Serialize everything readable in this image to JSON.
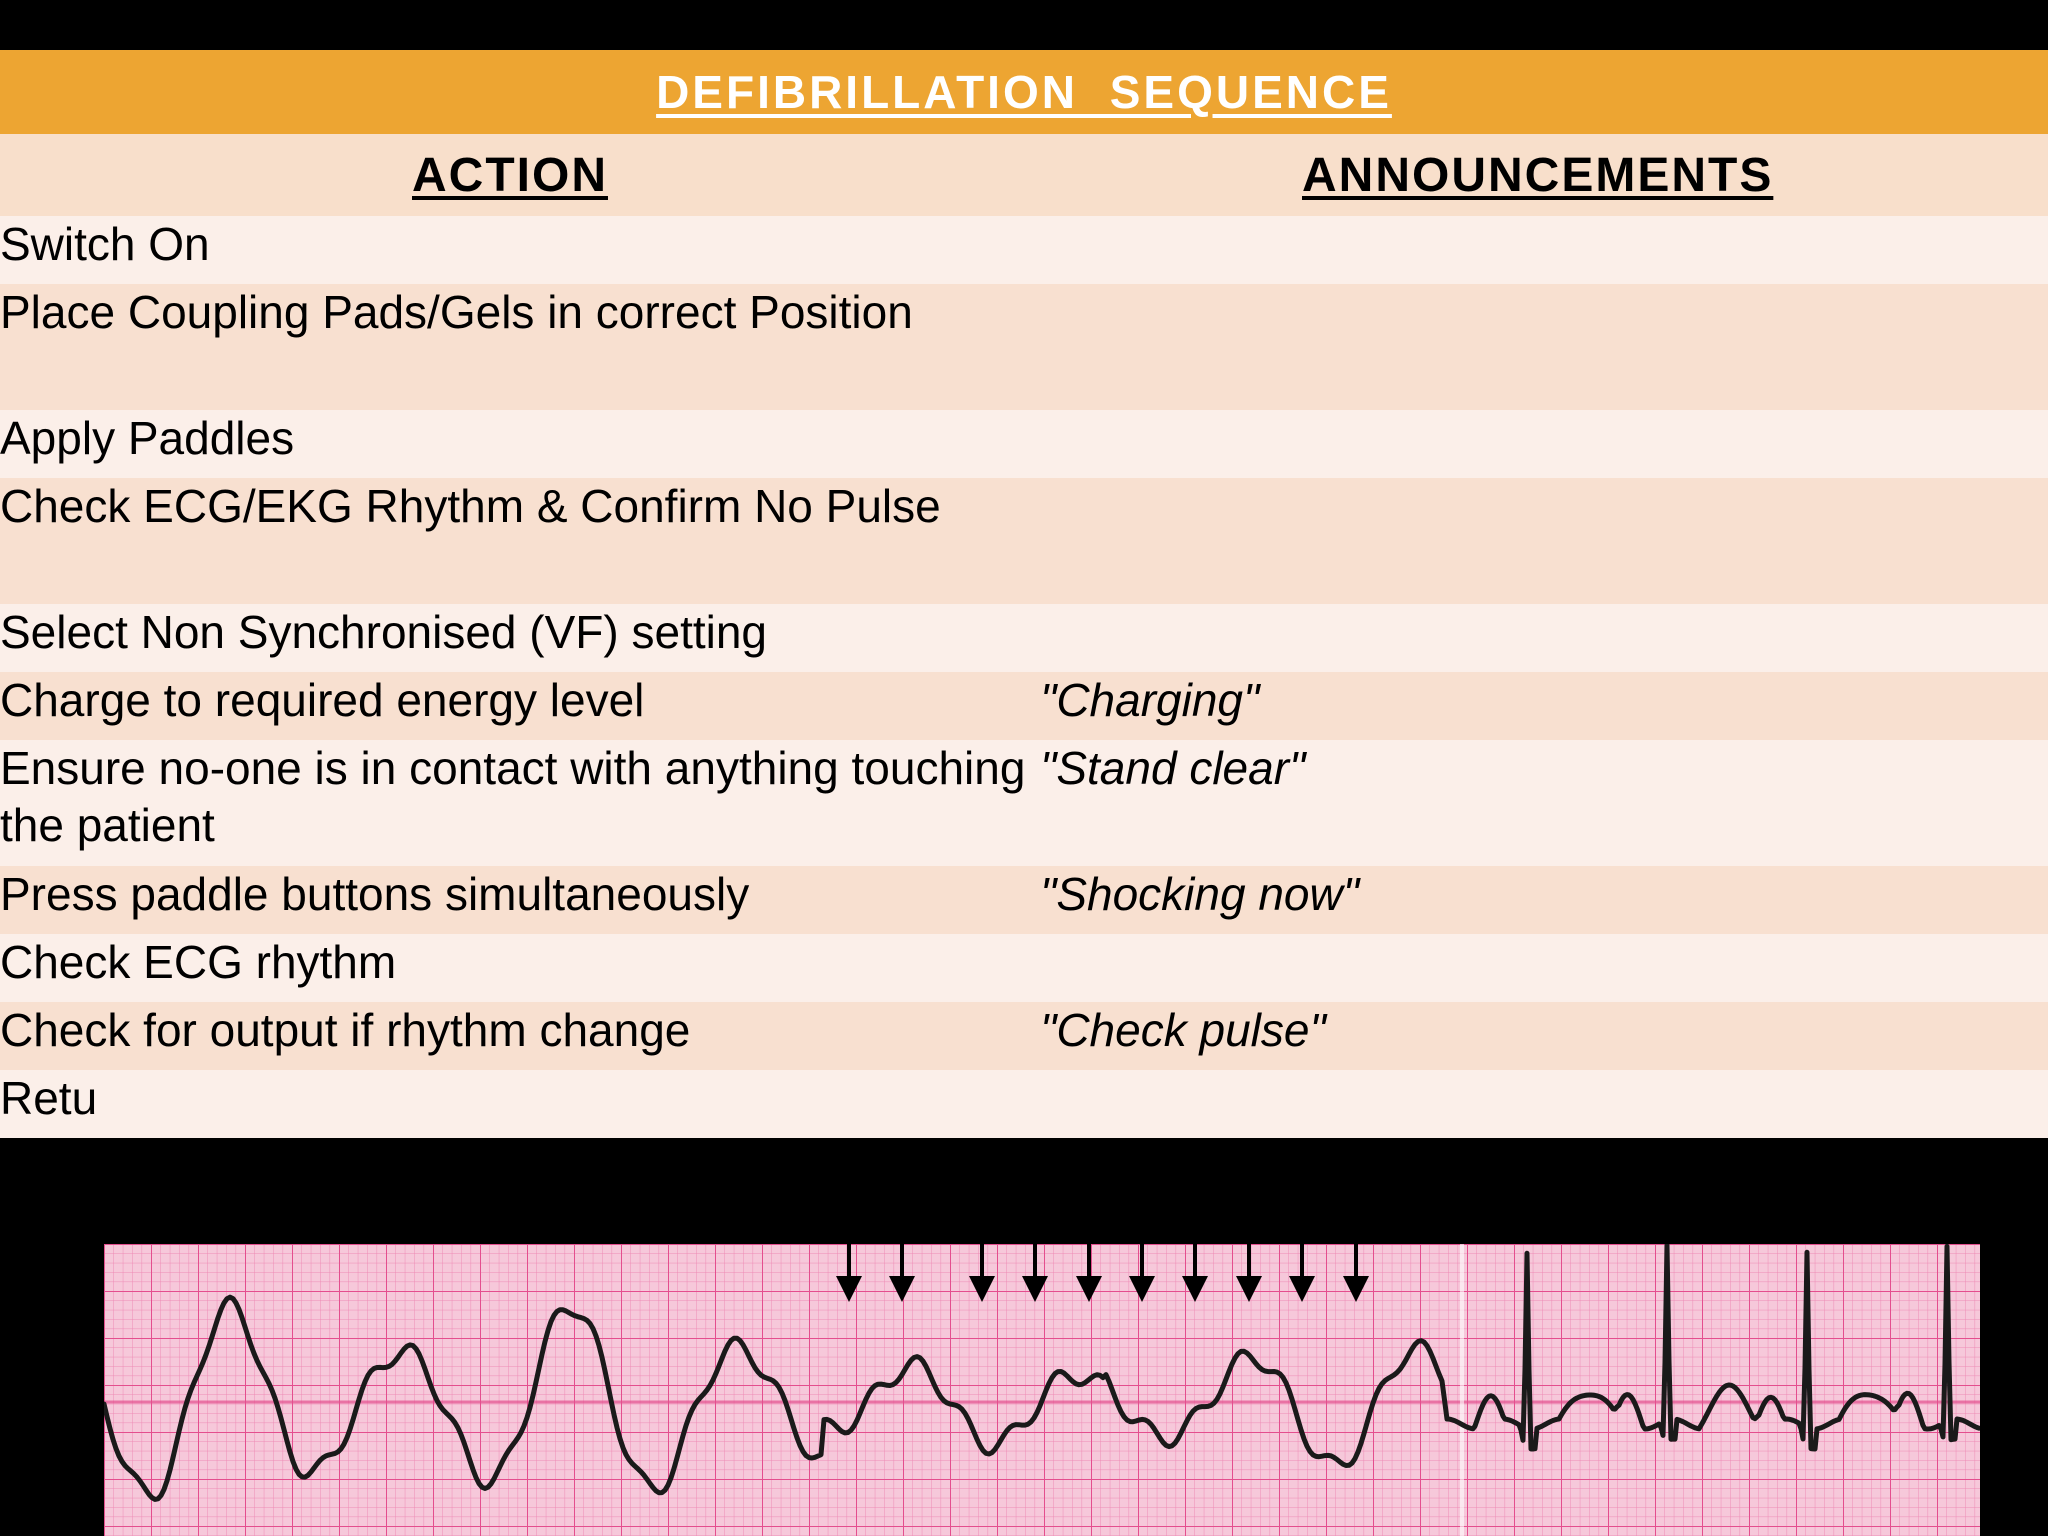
{
  "title": "DEFIBRILLATION SEQUENCE",
  "headers": {
    "action": "ACTION",
    "announcements": "ANNOUNCEMENTS"
  },
  "rows": [
    {
      "action": "Switch On",
      "announcement": ""
    },
    {
      "action": "Place Coupling Pads/Gels in correct Position",
      "announcement": ""
    },
    {
      "action": "Apply Paddles",
      "announcement": ""
    },
    {
      "action": "Check ECG/EKG Rhythm & Confirm No Pulse",
      "announcement": ""
    },
    {
      "action": "Select Non Synchronised (VF) setting",
      "announcement": ""
    },
    {
      "action": "Charge to required energy level",
      "announcement": "\"Charging\""
    },
    {
      "action": "Ensure no-one is in contact with anything touching the patient",
      "announcement": "\"Stand clear\""
    },
    {
      "action": "Press paddle buttons simultaneously",
      "announcement": "\"Shocking now\""
    },
    {
      "action": "Check ECG rhythm",
      "announcement": ""
    },
    {
      "action": "Check for output if rhythm change",
      "announcement": "\"Check pulse\""
    },
    {
      "action": "Retu",
      "announcement": ""
    }
  ],
  "colors": {
    "title_bar": "#EDA532",
    "header_row": "#F8DFCB",
    "row_light": "#FBEFE9",
    "row_dark": "#F8E0D0",
    "ecg_paper": "#F6C8DA",
    "ecg_grid": "#E44E8E",
    "ecg_trace": "#1a1a1a"
  },
  "ecg_image": {
    "icon": "ecg-strip-ventricular-fibrillation-to-sinus",
    "shock_arrows": 10
  }
}
